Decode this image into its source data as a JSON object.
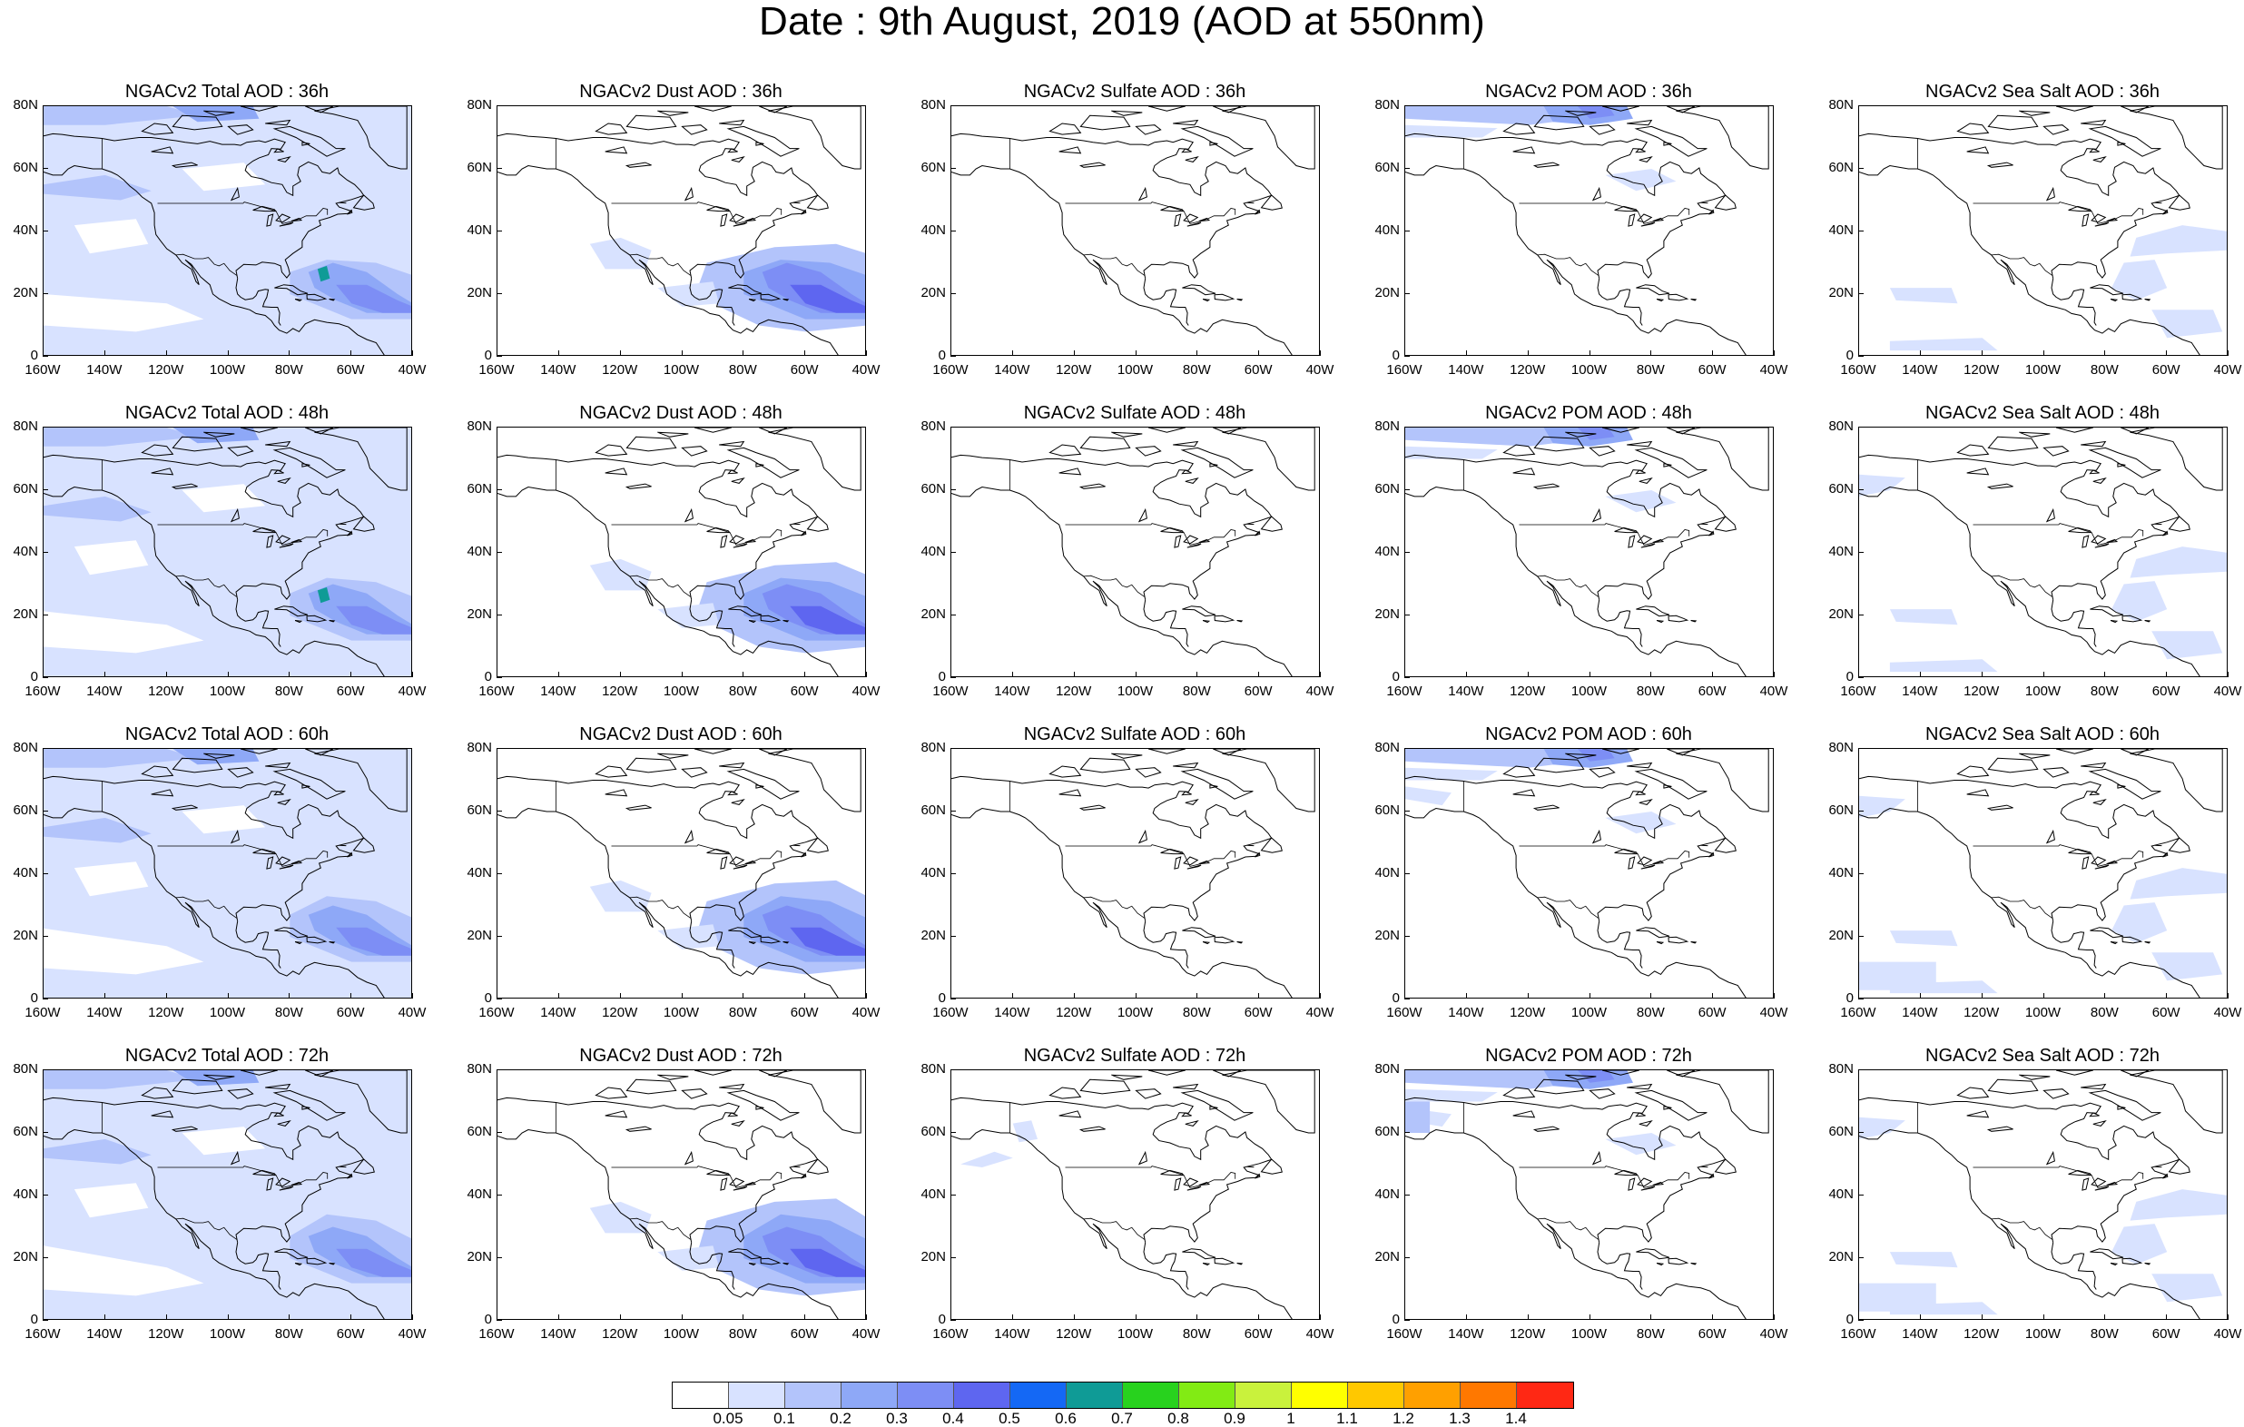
{
  "title": "Date : 9th August, 2019 (AOD at 550nm)",
  "axes": {
    "x_ticks": [
      "160W",
      "140W",
      "120W",
      "100W",
      "80W",
      "60W",
      "40W"
    ],
    "y_ticks": [
      "80N",
      "60N",
      "40N",
      "20N",
      "0"
    ],
    "lon_range": [
      -160,
      -40
    ],
    "lat_range": [
      0,
      80
    ]
  },
  "panels": [
    {
      "title": "NGACv2 Total AOD : 36h",
      "species": "total",
      "hour": 36
    },
    {
      "title": "NGACv2 Dust AOD : 36h",
      "species": "dust",
      "hour": 36
    },
    {
      "title": "NGACv2 Sulfate AOD : 36h",
      "species": "sulfate",
      "hour": 36
    },
    {
      "title": "NGACv2 POM AOD : 36h",
      "species": "pom",
      "hour": 36
    },
    {
      "title": "NGACv2 Sea Salt AOD : 36h",
      "species": "seasalt",
      "hour": 36
    },
    {
      "title": "NGACv2 Total AOD : 48h",
      "species": "total",
      "hour": 48
    },
    {
      "title": "NGACv2 Dust AOD : 48h",
      "species": "dust",
      "hour": 48
    },
    {
      "title": "NGACv2 Sulfate AOD : 48h",
      "species": "sulfate",
      "hour": 48
    },
    {
      "title": "NGACv2 POM AOD : 48h",
      "species": "pom",
      "hour": 48
    },
    {
      "title": "NGACv2 Sea Salt AOD : 48h",
      "species": "seasalt",
      "hour": 48
    },
    {
      "title": "NGACv2 Total AOD : 60h",
      "species": "total",
      "hour": 60
    },
    {
      "title": "NGACv2 Dust AOD : 60h",
      "species": "dust",
      "hour": 60
    },
    {
      "title": "NGACv2 Sulfate AOD : 60h",
      "species": "sulfate",
      "hour": 60
    },
    {
      "title": "NGACv2 POM AOD : 60h",
      "species": "pom",
      "hour": 60
    },
    {
      "title": "NGACv2 Sea Salt AOD : 60h",
      "species": "seasalt",
      "hour": 60
    },
    {
      "title": "NGACv2 Total AOD : 72h",
      "species": "total",
      "hour": 72
    },
    {
      "title": "NGACv2 Dust AOD : 72h",
      "species": "dust",
      "hour": 72
    },
    {
      "title": "NGACv2 Sulfate AOD : 72h",
      "species": "sulfate",
      "hour": 72
    },
    {
      "title": "NGACv2 POM AOD : 72h",
      "species": "pom",
      "hour": 72
    },
    {
      "title": "NGACv2 Sea Salt  AOD : 72h",
      "species": "seasalt",
      "hour": 72
    }
  ],
  "colorbar": {
    "colors": [
      "#ffffff",
      "#d8e2ff",
      "#b3c4fb",
      "#8ea8f7",
      "#7d8ef5",
      "#5e66f0",
      "#1468f5",
      "#0f9b96",
      "#28d21e",
      "#82eb14",
      "#c9f23c",
      "#ffff00",
      "#ffc800",
      "#ffa000",
      "#ff7800",
      "#ff2814"
    ],
    "labels": [
      "0.05",
      "0.1",
      "0.2",
      "0.3",
      "0.4",
      "0.5",
      "0.6",
      "0.7",
      "0.8",
      "0.9",
      "1",
      "1.1",
      "1.2",
      "1.3",
      "1.4"
    ]
  }
}
